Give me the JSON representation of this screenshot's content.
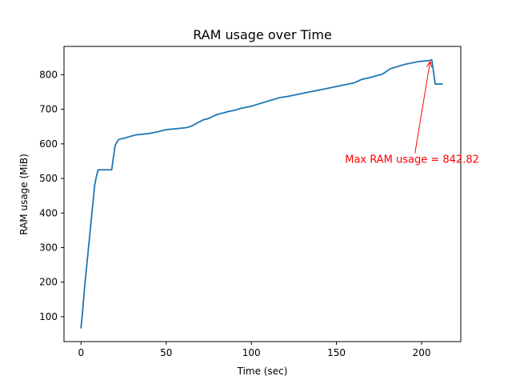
{
  "chart_data": {
    "type": "line",
    "title": "RAM usage over Time",
    "xlabel": "Time (sec)",
    "ylabel": "RAM usage (MiB)",
    "xlim": [
      -10,
      223
    ],
    "ylim": [
      28,
      882
    ],
    "xticks": [
      0,
      50,
      100,
      150,
      200
    ],
    "yticks": [
      100,
      200,
      300,
      400,
      500,
      600,
      700,
      800
    ],
    "grid": false,
    "line_color": "#1f77b4",
    "series": [
      {
        "x": [
          0,
          1,
          2,
          3,
          4,
          5,
          6,
          7,
          8,
          9,
          10,
          11,
          12,
          13,
          14,
          15,
          16,
          17,
          18,
          19,
          20,
          21,
          22,
          23,
          24,
          25,
          26,
          27,
          28,
          29,
          30,
          32,
          34,
          36,
          38,
          40,
          42,
          44,
          46,
          48,
          50,
          52,
          54,
          56,
          58,
          60,
          62,
          64,
          66,
          68,
          70,
          72,
          74,
          76,
          78,
          80,
          82,
          84,
          86,
          88,
          90,
          92,
          94,
          96,
          98,
          100,
          102,
          104,
          106,
          108,
          110,
          112,
          114,
          116,
          118,
          120,
          122,
          124,
          126,
          128,
          130,
          132,
          134,
          136,
          138,
          140,
          142,
          144,
          146,
          148,
          150,
          152,
          154,
          156,
          158,
          160,
          162,
          164,
          166,
          168,
          170,
          172,
          174,
          176,
          178,
          180,
          182,
          184,
          186,
          188,
          190,
          192,
          194,
          196,
          198,
          200,
          202,
          204,
          206,
          208,
          210,
          212
        ],
        "y": [
          68,
          120,
          180,
          230,
          280,
          330,
          380,
          430,
          480,
          505,
          525,
          525,
          525,
          525,
          525,
          525,
          525,
          525,
          525,
          560,
          595,
          605,
          612,
          614,
          615,
          616,
          617,
          619,
          620,
          622,
          623,
          626,
          627,
          628,
          629,
          630,
          632,
          634,
          636,
          639,
          641,
          642,
          643,
          644,
          645,
          646,
          647,
          650,
          654,
          660,
          665,
          670,
          672,
          676,
          681,
          685,
          688,
          690,
          693,
          695,
          697,
          700,
          703,
          705,
          707,
          709,
          712,
          715,
          718,
          721,
          724,
          727,
          730,
          733,
          735,
          736,
          738,
          740,
          742,
          744,
          746,
          748,
          750,
          752,
          754,
          756,
          758,
          760,
          762,
          764,
          766,
          768,
          770,
          772,
          774,
          776,
          780,
          785,
          788,
          790,
          792,
          795,
          798,
          800,
          805,
          812,
          818,
          821,
          824,
          827,
          830,
          832,
          834,
          836,
          838,
          839,
          840,
          841,
          842.82,
          773,
          773,
          773
        ]
      }
    ],
    "annotations": [
      {
        "text": "Max RAM usage = 842.82",
        "x": 205,
        "y": 842.82,
        "text_x": 155,
        "text_y": 545,
        "color": "#ff0000"
      }
    ]
  }
}
